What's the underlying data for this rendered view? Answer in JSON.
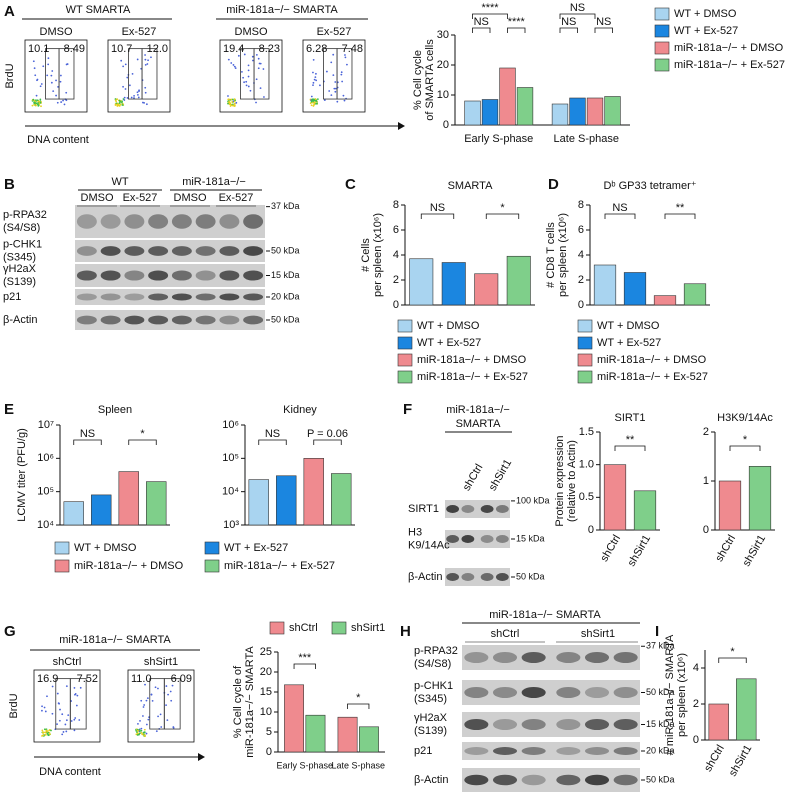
{
  "chart_data": [
    {
      "type": "bar",
      "categories": [
        "Early S-phase",
        "Late S-phase"
      ],
      "ylabel": [
        "% Cell cycle",
        "of SMARTA cells"
      ],
      "series": [
        {
          "name": "WT + DMSO",
          "color": "#a9d4f0",
          "values": [
            8,
            7
          ]
        },
        {
          "name": "WT + Ex-527",
          "color": "#1b86e0",
          "values": [
            8.5,
            9
          ]
        },
        {
          "name": "miR-181a−/− + DMSO",
          "color": "#ef8a8f",
          "values": [
            19,
            9
          ]
        },
        {
          "name": "miR-181a−/− + Ex-527",
          "color": "#7fcf8a",
          "values": [
            12.5,
            9.5
          ]
        }
      ],
      "ylim": [
        0,
        30
      ],
      "yticks": [
        0,
        10,
        20,
        30
      ],
      "annotations": [
        "****",
        "NS",
        "****",
        "NS",
        "NS",
        "NS"
      ]
    },
    {
      "type": "bar",
      "title": "SMARTA",
      "ylabel": [
        "# Cells",
        "per spleen (x10⁶)"
      ],
      "categories": [
        "WT + DMSO",
        "WT + Ex-527",
        "miR-181a−/− + DMSO",
        "miR-181a−/− + Ex-527"
      ],
      "values": [
        3.7,
        3.4,
        2.5,
        3.9
      ],
      "colors": [
        "#a9d4f0",
        "#1b86e0",
        "#ef8a8f",
        "#7fcf8a"
      ],
      "ylim": [
        0,
        8
      ],
      "yticks": [
        0,
        2,
        4,
        6,
        8
      ],
      "annotations": [
        "NS",
        "*"
      ]
    },
    {
      "type": "bar",
      "title": "Dᵇ GP33 tetramer⁺",
      "ylabel": [
        "# CD8 T cells",
        "per spleen (x10⁶)"
      ],
      "categories": [
        "WT + DMSO",
        "WT + Ex-527",
        "miR-181a−/− + DMSO",
        "miR-181a−/− + Ex-527"
      ],
      "values": [
        3.2,
        2.6,
        0.75,
        1.7
      ],
      "colors": [
        "#a9d4f0",
        "#1b86e0",
        "#ef8a8f",
        "#7fcf8a"
      ],
      "ylim": [
        0,
        8
      ],
      "yticks": [
        0,
        2,
        4,
        6,
        8
      ],
      "annotations": [
        "NS",
        "**"
      ]
    },
    {
      "type": "bar",
      "title": "Spleen",
      "ylabel": [
        "LCMV titer (PFU/g)"
      ],
      "categories": [
        "WT + DMSO",
        "WT + Ex-527",
        "miR-181a−/− + DMSO",
        "miR-181a−/− + Ex-527"
      ],
      "values": [
        50000,
        80000,
        400000,
        200000
      ],
      "colors": [
        "#a9d4f0",
        "#1b86e0",
        "#ef8a8f",
        "#7fcf8a"
      ],
      "log": true,
      "ylim": [
        10000,
        10000000
      ],
      "yticks": [
        {
          "value": 10000,
          "label": "10⁴"
        },
        {
          "value": 100000,
          "label": "10⁵"
        },
        {
          "value": 1000000,
          "label": "10⁶"
        },
        {
          "value": 10000000,
          "label": "10⁷"
        }
      ],
      "annotations": [
        "NS",
        "*"
      ]
    },
    {
      "type": "bar",
      "title": "Kidney",
      "values": [
        23000,
        30000,
        100000,
        35000
      ],
      "colors": [
        "#a9d4f0",
        "#1b86e0",
        "#ef8a8f",
        "#7fcf8a"
      ],
      "log": true,
      "ylim": [
        1000,
        1000000
      ],
      "yticks": [
        {
          "value": 1000,
          "label": "10³"
        },
        {
          "value": 10000,
          "label": "10⁴"
        },
        {
          "value": 100000,
          "label": "10⁵"
        },
        {
          "value": 1000000,
          "label": "10⁶"
        }
      ],
      "annotations": [
        "NS",
        "P = 0.06"
      ]
    },
    {
      "type": "bar",
      "title": "SIRT1",
      "ylabel": [
        "Protein expression",
        "(relative to Actin)"
      ],
      "categories": [
        "shCtrl",
        "shSirt1"
      ],
      "values": [
        1.0,
        0.6
      ],
      "colors": [
        "#ef8a8f",
        "#7fcf8a"
      ],
      "ylim": [
        0,
        1.5
      ],
      "yticks": [
        0,
        0.5,
        {
          "value": 1,
          "label": "1.0"
        },
        1.5
      ],
      "annotations": [
        "**"
      ]
    },
    {
      "type": "bar",
      "title": "H3K9/14Ac",
      "categories": [
        "shCtrl",
        "shSirt1"
      ],
      "values": [
        1.0,
        1.3
      ],
      "colors": [
        "#ef8a8f",
        "#7fcf8a"
      ],
      "ylim": [
        0,
        2
      ],
      "yticks": [
        0,
        1,
        2
      ],
      "annotations": [
        "*"
      ]
    },
    {
      "type": "bar",
      "categories": [
        "Early S-phase",
        "Late S-phase"
      ],
      "ylabel": [
        "% Cell cycle of",
        "miR-181a−/− SMARTA"
      ],
      "series": [
        {
          "name": "shCtrl",
          "color": "#ef8a8f",
          "values": [
            16.8,
            8.7
          ]
        },
        {
          "name": "shSirt1",
          "color": "#7fcf8a",
          "values": [
            9.2,
            6.3
          ]
        }
      ],
      "ylim": [
        0,
        25
      ],
      "yticks": [
        0,
        5,
        10,
        15,
        20,
        25
      ],
      "annotations": [
        "***",
        "*"
      ]
    },
    {
      "type": "bar",
      "ylabel": [
        "# miR-181a−/− SMARTA",
        "per spleen (x10⁶)"
      ],
      "categories": [
        "shCtrl",
        "shSirt1"
      ],
      "values": [
        2.0,
        3.4
      ],
      "colors": [
        "#ef8a8f",
        "#7fcf8a"
      ],
      "ylim": [
        0,
        5
      ],
      "yticks": [
        0,
        2,
        4
      ],
      "annotations": [
        "*"
      ]
    }
  ],
  "panels": {
    "letters": [
      "A",
      "B",
      "C",
      "D",
      "E",
      "F",
      "G",
      "H",
      "I"
    ],
    "flow_A": {
      "groups": [
        "WT SMARTA",
        "miR-181a−/− SMARTA"
      ],
      "ylabel": "BrdU",
      "xlabel": "DNA content",
      "plots": [
        {
          "label": "DMSO",
          "gates": [
            "10.1",
            "8.49"
          ]
        },
        {
          "label": "Ex-527",
          "gates": [
            "10.7",
            "12.0"
          ]
        },
        {
          "label": "DMSO",
          "gates": [
            "19.4",
            "8.23"
          ]
        },
        {
          "label": "Ex-527",
          "gates": [
            "6.28",
            "7.48"
          ]
        }
      ]
    },
    "flow_G": {
      "group": "miR-181a−/− SMARTA",
      "ylabel": "BrdU",
      "xlabel": "DNA content",
      "plots": [
        {
          "label": "shCtrl",
          "gates": [
            "16.9",
            "7.52"
          ]
        },
        {
          "label": "shSirt1",
          "gates": [
            "11.0",
            "6.09"
          ]
        }
      ]
    },
    "blot_B": {
      "groups": [
        "WT",
        "miR-181a−/−"
      ],
      "lanes": [
        "DMSO",
        "Ex-527",
        "DMSO",
        "Ex-527"
      ],
      "rows": [
        [
          "p-RPA32",
          "(S4/S8)"
        ],
        [
          "p-CHK1",
          "(S345)"
        ],
        [
          "γH2aX",
          "(S139)"
        ],
        [
          "p21"
        ],
        [
          "β-Actin"
        ]
      ],
      "markers": [
        "37 kDa",
        "50 kDa",
        "15 kDa",
        "20 kDa",
        "50 kDa"
      ]
    },
    "blot_F": {
      "title": [
        "miR-181a−/−",
        "SMARTA"
      ],
      "lanes": [
        "shCtrl",
        "shSirt1"
      ],
      "rows": [
        [
          "SIRT1"
        ],
        [
          "H3",
          "K9/14Ac"
        ],
        [
          "β-Actin"
        ]
      ],
      "markers": [
        "100 kDa",
        "15 kDa",
        "50 kDa"
      ]
    },
    "blot_H": {
      "title": [
        "miR-181a−/− SMARTA"
      ],
      "lanes": [
        "shCtrl",
        "shSirt1"
      ],
      "rows": [
        [
          "p-RPA32",
          "(S4/S8)"
        ],
        [
          "p-CHK1",
          "(S345)"
        ],
        [
          "γH2aX",
          "(S139)"
        ],
        [
          "p21"
        ],
        [
          "β-Actin"
        ]
      ],
      "markers": [
        "37 kDa",
        "50 kDa",
        "15 kDa",
        "20 kDa",
        "50 kDa"
      ]
    }
  }
}
